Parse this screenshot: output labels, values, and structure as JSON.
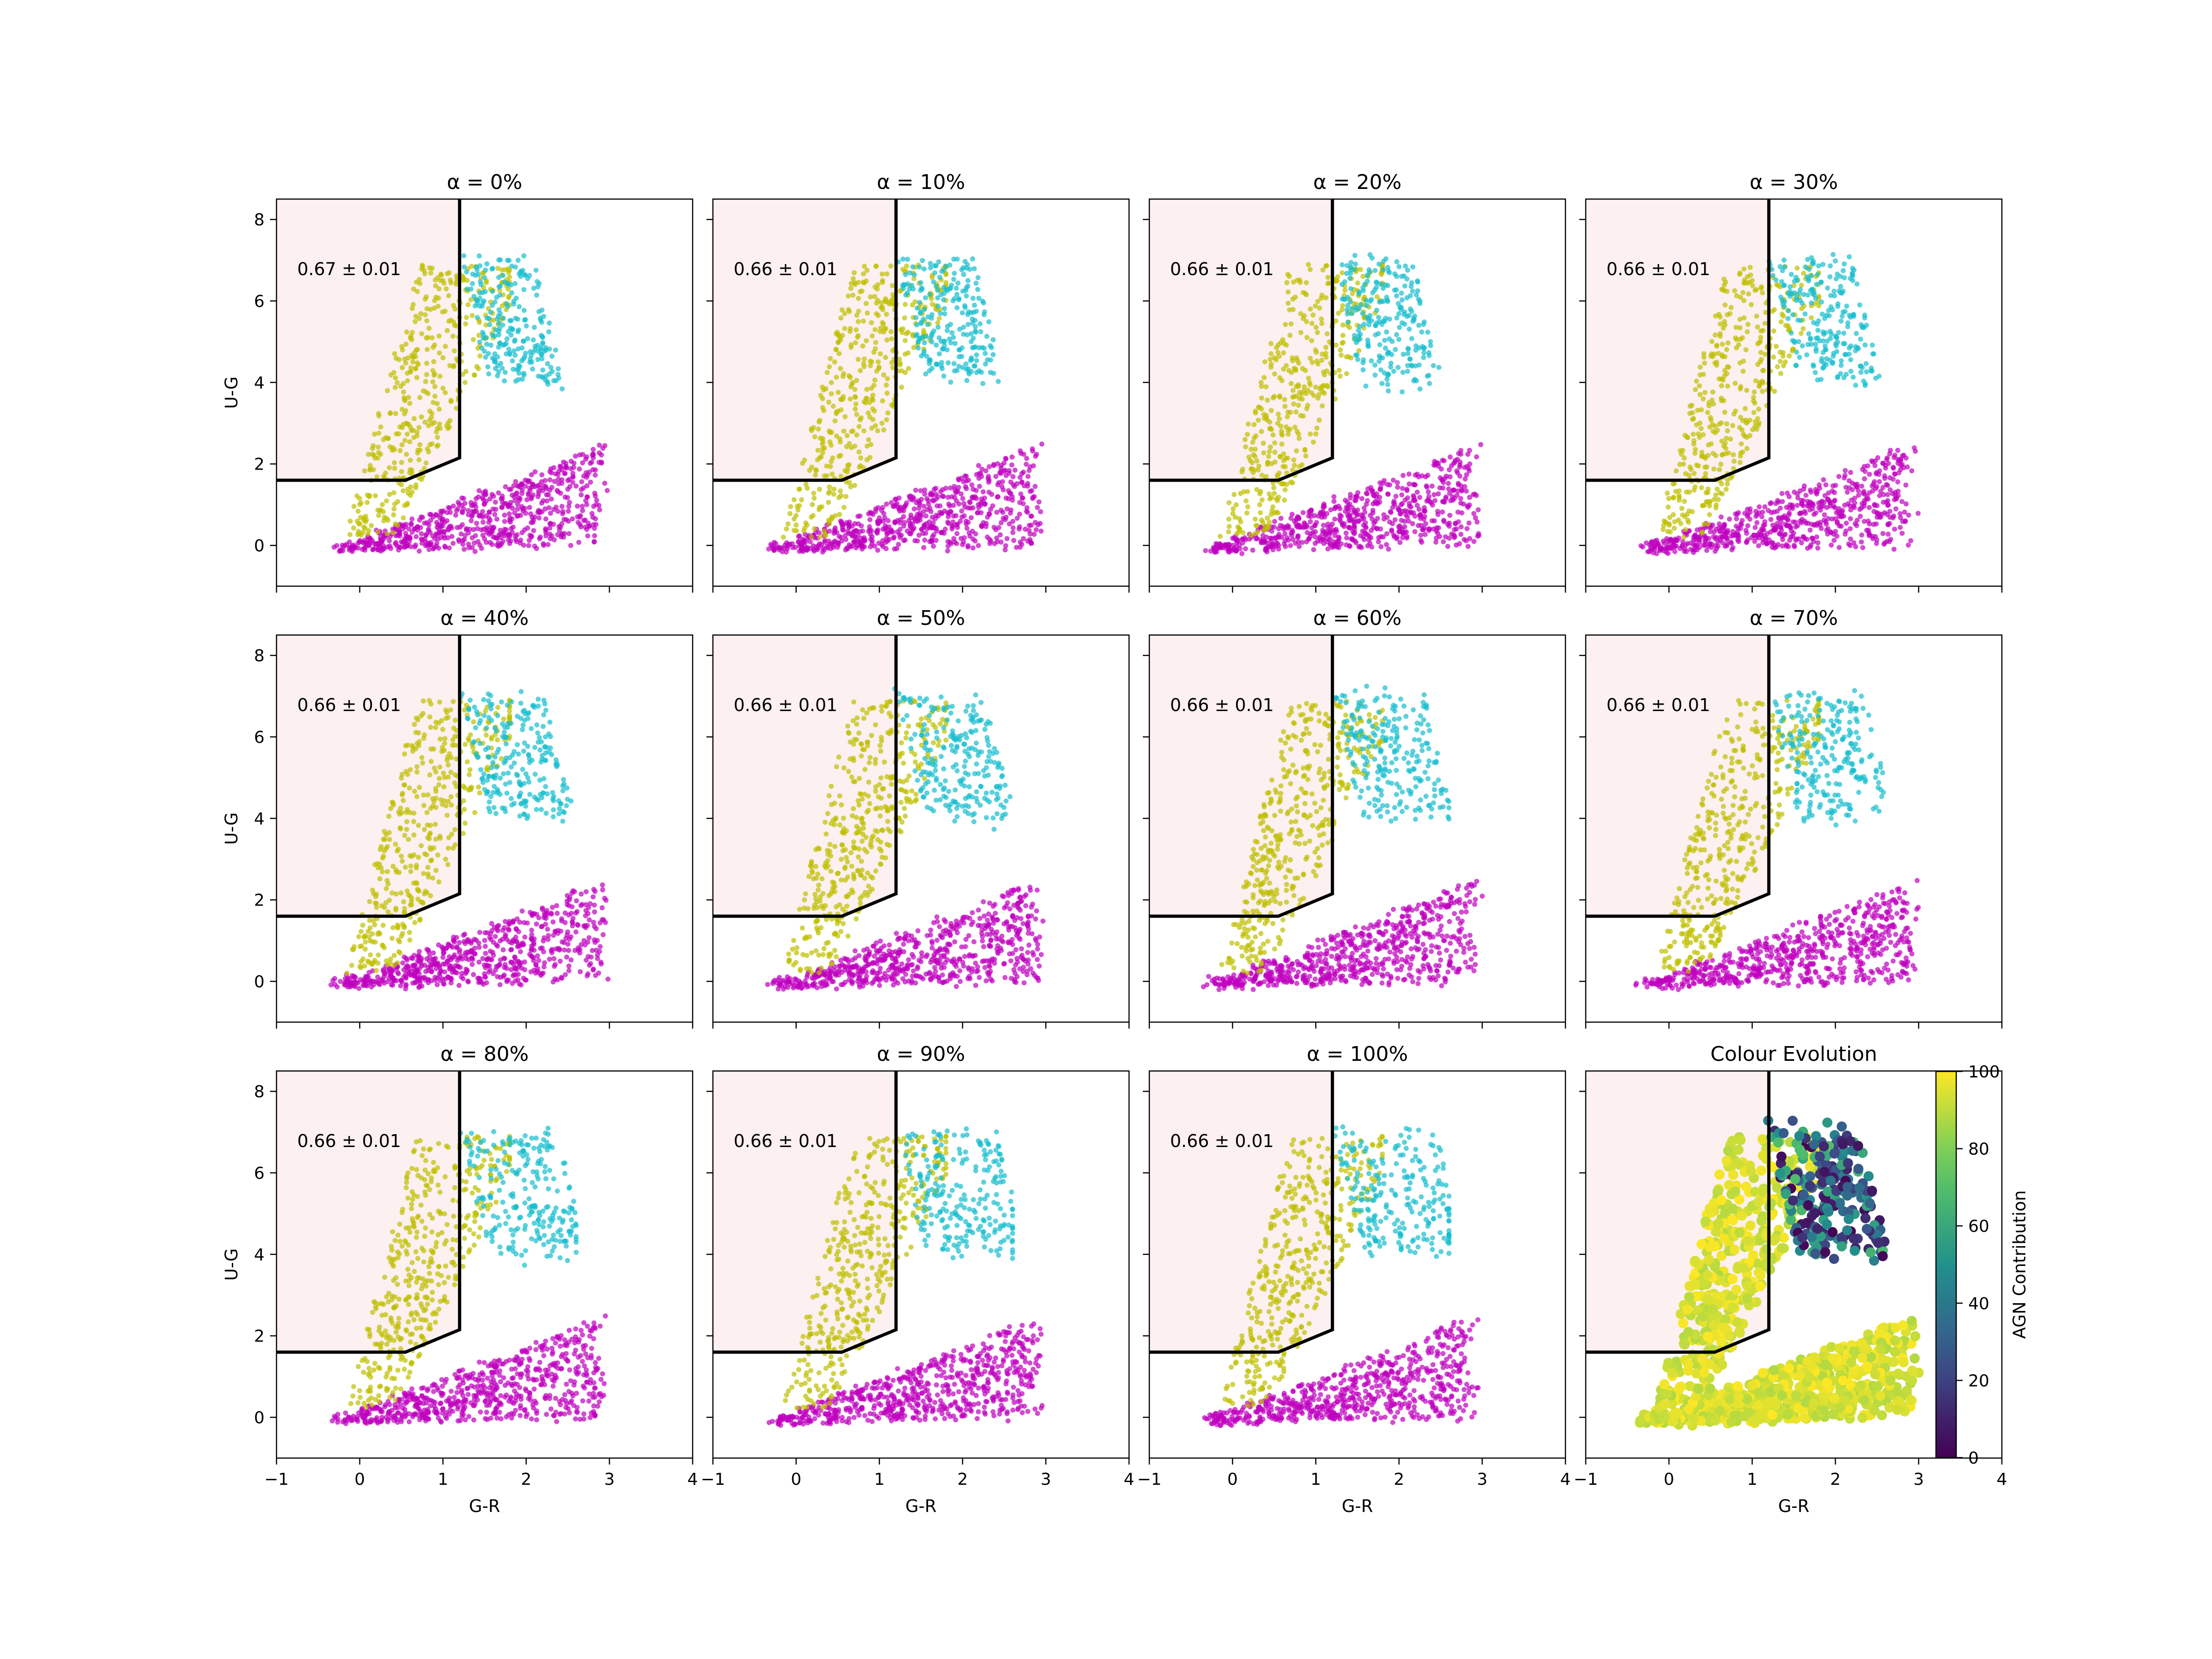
{
  "figure": {
    "panel_titles": [
      "α = 0%",
      "α = 10%",
      "α = 20%",
      "α = 30%",
      "α = 40%",
      "α = 50%",
      "α = 60%",
      "α = 70%",
      "α = 80%",
      "α = 90%",
      "α = 100%",
      "Colour Evolution"
    ],
    "annotations": [
      "0.67 ± 0.01",
      "0.66 ± 0.01",
      "0.66 ± 0.01",
      "0.66 ± 0.01",
      "0.66 ± 0.01",
      "0.66 ± 0.01",
      "0.66 ± 0.01",
      "0.66 ± 0.01",
      "0.66 ± 0.01",
      "0.66 ± 0.01",
      "0.66 ± 0.01"
    ],
    "xlabel": "G-R",
    "ylabel": "U-G",
    "colorbar_label": "AGN Contribution",
    "colors": {
      "yellow_group": "#bfbf00",
      "cyan_group": "#17becf",
      "magenta_group": "#bf00bf",
      "region_fill": "#fcf0f0",
      "boundary": "#000000"
    }
  },
  "chart_data": {
    "type": "scatter",
    "layout": "3x4 grid of scatter panels (11 alpha steps + colour evolution panel with colorbar)",
    "xlim": [
      -1,
      4
    ],
    "ylim": [
      -1,
      8.5
    ],
    "xticks": [
      -1,
      0,
      1,
      2,
      3,
      4
    ],
    "yticks": [
      0,
      2,
      4,
      6,
      8
    ],
    "grid": false,
    "alpha_values_percent": [
      0,
      10,
      20,
      30,
      40,
      50,
      60,
      70,
      80,
      90,
      100
    ],
    "region_boundary": [
      [
        -1,
        1.6
      ],
      [
        0.55,
        1.6
      ],
      [
        1.2,
        2.15
      ],
      [
        1.2,
        8.5
      ]
    ],
    "series": [
      {
        "color": "yellow",
        "x_range": [
          -0.2,
          1.8
        ],
        "y_range": [
          0.2,
          7.0
        ]
      },
      {
        "color": "cyan",
        "x_range": [
          1.2,
          2.6
        ],
        "y_range": [
          3.6,
          7.9
        ]
      },
      {
        "color": "magenta",
        "x_range": [
          -0.4,
          3.0
        ],
        "y_range": [
          -0.2,
          3.0
        ]
      }
    ],
    "colorbar": {
      "label": "AGN Contribution",
      "range": [
        0,
        100
      ],
      "ticks": [
        0,
        20,
        40,
        60,
        80,
        100
      ],
      "colormap": "viridis"
    }
  }
}
